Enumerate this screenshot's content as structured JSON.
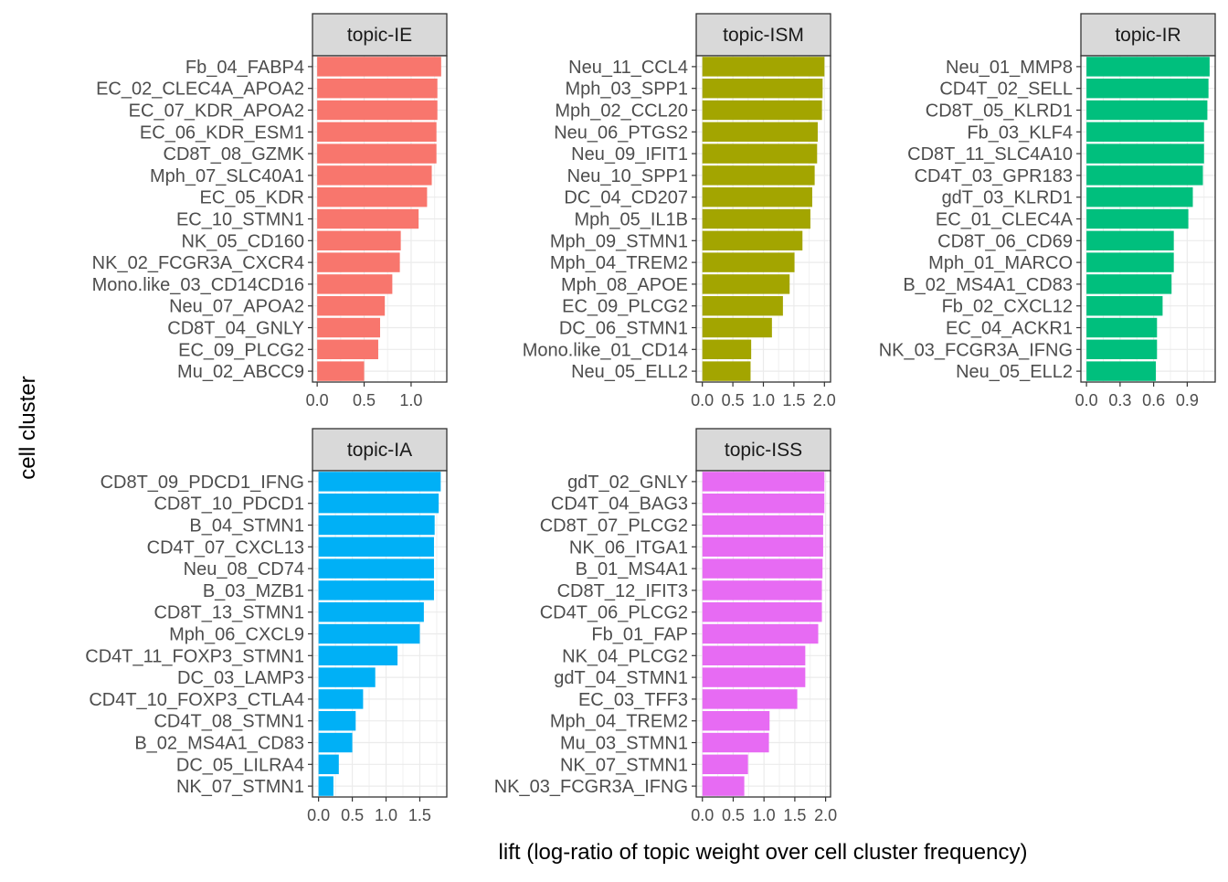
{
  "chart_data": {
    "type": "bar",
    "orientation": "horizontal",
    "faceted": true,
    "xlabel": "lift (log-ratio of topic weight over cell cluster frequency)",
    "ylabel": "cell cluster",
    "grid": true,
    "panels": [
      {
        "strip": "topic-IE",
        "color": "#F8766D",
        "xlim": [
          -0.05,
          1.38
        ],
        "ticks": [
          0.0,
          0.5,
          1.0
        ],
        "tick_labels": [
          "0.0",
          "0.5",
          "1.0"
        ],
        "categories": [
          "Fb_04_FABP4",
          "EC_02_CLEC4A_APOA2",
          "EC_07_KDR_APOA2",
          "EC_06_KDR_ESM1",
          "CD8T_08_GZMK",
          "Mph_07_SLC40A1",
          "EC_05_KDR",
          "EC_10_STMN1",
          "NK_05_CD160",
          "NK_02_FCGR3A_CXCR4",
          "Mono.like_03_CD14CD16",
          "Neu_07_APOA2",
          "CD8T_04_GNLY",
          "EC_09_PLCG2",
          "Mu_02_ABCC9"
        ],
        "values": [
          1.32,
          1.28,
          1.28,
          1.27,
          1.27,
          1.22,
          1.17,
          1.08,
          0.89,
          0.88,
          0.8,
          0.72,
          0.67,
          0.65,
          0.5
        ]
      },
      {
        "strip": "topic-ISM",
        "color": "#A3A500",
        "xlim": [
          -0.1,
          2.1
        ],
        "ticks": [
          0.0,
          0.5,
          1.0,
          1.5,
          2.0
        ],
        "tick_labels": [
          "0.0",
          "0.5",
          "1.0",
          "1.5",
          "2.0"
        ],
        "categories": [
          "Neu_11_CCL4",
          "Mph_03_SPP1",
          "Mph_02_CCL20",
          "Neu_06_PTGS2",
          "Neu_09_IFIT1",
          "Neu_10_SPP1",
          "DC_04_CD207",
          "Mph_05_IL1B",
          "Mph_09_STMN1",
          "Mph_04_TREM2",
          "Mph_08_APOE",
          "EC_09_PLCG2",
          "DC_06_STMN1",
          "Mono.like_01_CD14",
          "Neu_05_ELL2"
        ],
        "values": [
          2.0,
          1.97,
          1.96,
          1.89,
          1.88,
          1.84,
          1.8,
          1.77,
          1.64,
          1.51,
          1.43,
          1.32,
          1.14,
          0.8,
          0.79
        ]
      },
      {
        "strip": "topic-IR",
        "color": "#00BF7D",
        "xlim": [
          -0.05,
          1.15
        ],
        "ticks": [
          0.0,
          0.3,
          0.6,
          0.9
        ],
        "tick_labels": [
          "0.0",
          "0.3",
          "0.6",
          "0.9"
        ],
        "categories": [
          "Neu_01_MMP8",
          "CD4T_02_SELL",
          "CD8T_05_KLRD1",
          "Fb_03_KLF4",
          "CD8T_11_SLC4A10",
          "CD4T_03_GPR183",
          "gdT_03_KLRD1",
          "EC_01_CLEC4A",
          "CD8T_06_CD69",
          "Mph_01_MARCO",
          "B_02_MS4A1_CD83",
          "Fb_02_CXCL12",
          "EC_04_ACKR1",
          "NK_03_FCGR3A_IFNG",
          "Neu_05_ELL2"
        ],
        "values": [
          1.1,
          1.09,
          1.08,
          1.05,
          1.05,
          1.04,
          0.95,
          0.91,
          0.78,
          0.78,
          0.76,
          0.68,
          0.63,
          0.63,
          0.62
        ]
      },
      {
        "strip": "topic-IA",
        "color": "#00B0F6",
        "xlim": [
          -0.09,
          1.9
        ],
        "ticks": [
          0.0,
          0.5,
          1.0,
          1.5
        ],
        "tick_labels": [
          "0.0",
          "0.5",
          "1.0",
          "1.5"
        ],
        "categories": [
          "CD8T_09_PDCD1_IFNG",
          "CD8T_10_PDCD1",
          "B_04_STMN1",
          "CD4T_07_CXCL13",
          "Neu_08_CD74",
          "B_03_MZB1",
          "CD8T_13_STMN1",
          "Mph_06_CXCL9",
          "CD4T_11_FOXP3_STMN1",
          "DC_03_LAMP3",
          "CD4T_10_FOXP3_CTLA4",
          "CD4T_08_STMN1",
          "B_02_MS4A1_CD83",
          "DC_05_LILRA4",
          "NK_07_STMN1"
        ],
        "values": [
          1.81,
          1.78,
          1.72,
          1.71,
          1.71,
          1.71,
          1.56,
          1.5,
          1.17,
          0.84,
          0.66,
          0.55,
          0.5,
          0.3,
          0.22
        ]
      },
      {
        "strip": "topic-ISS",
        "color": "#E76BF3",
        "xlim": [
          -0.1,
          2.08
        ],
        "ticks": [
          0.0,
          0.5,
          1.0,
          1.5,
          2.0
        ],
        "tick_labels": [
          "0.0",
          "0.5",
          "1.0",
          "1.5",
          "2.0"
        ],
        "categories": [
          "gdT_02_GNLY",
          "CD4T_04_BAG3",
          "CD8T_07_PLCG2",
          "NK_06_ITGA1",
          "B_01_MS4A1",
          "CD8T_12_IFIT3",
          "CD4T_06_PLCG2",
          "Fb_01_FAP",
          "NK_04_PLCG2",
          "gdT_04_STMN1",
          "EC_03_TFF3",
          "Mph_04_TREM2",
          "Mu_03_STMN1",
          "NK_07_STMN1",
          "NK_03_FCGR3A_IFNG"
        ],
        "values": [
          1.98,
          1.98,
          1.96,
          1.96,
          1.95,
          1.94,
          1.94,
          1.88,
          1.67,
          1.67,
          1.54,
          1.09,
          1.08,
          0.74,
          0.68
        ]
      }
    ]
  }
}
